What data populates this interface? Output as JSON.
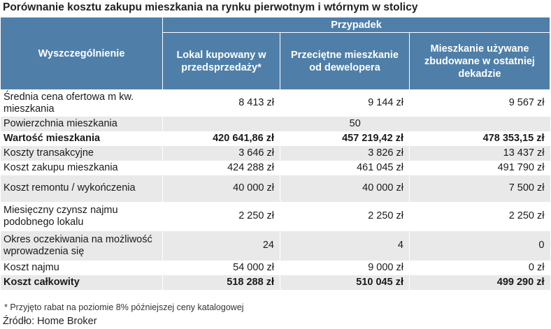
{
  "title": "Porównanie kosztu zakupu mieszkania na rynku pierwotnym i wtórnym w stolicy",
  "header": {
    "row_label": "Wyszczególnienie",
    "group": "Przypadek",
    "columns": [
      "Lokal kupowany w przedsprzedaży*",
      "Przeciętne mieszkanie od dewelopera",
      "Mieszkanie używane zbudowane w ostatniej dekadzie"
    ]
  },
  "rows": [
    {
      "label": "Średnia cena ofertowa m kw. mieszkania",
      "values": [
        "8 413 zł",
        "9 144 zł",
        "9 567 zł"
      ]
    },
    {
      "label": "Powierzchnia mieszkania",
      "merged": "50"
    },
    {
      "label": "Wartość mieszkania",
      "values": [
        "420 641,86 zł",
        "457 219,42 zł",
        "478 353,15 zł"
      ],
      "bold": true
    },
    {
      "label": "Koszty transakcyjne",
      "values": [
        "3 646 zł",
        "3 826 zł",
        "13 437 zł"
      ]
    },
    {
      "label": "Koszt zakupu mieszkania",
      "values": [
        "424 288 zł",
        "461 045 zł",
        "491 790 zł"
      ]
    },
    {
      "label": "Koszt remontu / wykończenia",
      "values": [
        "40 000 zł",
        "40 000 zł",
        "7 500 zł"
      ]
    },
    {
      "label": "Miesięczny czynsz najmu podobnego lokalu",
      "values": [
        "2 250 zł",
        "2 250 zł",
        "2 250 zł"
      ]
    },
    {
      "label": "Okres oczekiwania na możliwość wprowadzenia się",
      "values": [
        "24",
        "4",
        "0"
      ]
    },
    {
      "label": "Koszt najmu",
      "values": [
        "54 000 zł",
        "9 000 zł",
        "0 zł"
      ]
    },
    {
      "label": "Koszt całkowity",
      "values": [
        "518 288 zł",
        "510 045 zł",
        "499 290 zł"
      ],
      "bold": true
    }
  ],
  "footnote": "* Przyjęto rabat na poziomie 8% późniejszej ceny katalogowej",
  "source": "Źródło: Home Broker"
}
